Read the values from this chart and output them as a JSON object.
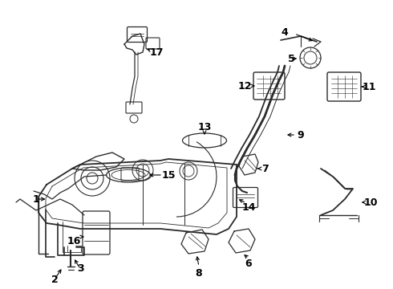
{
  "bg_color": "#ffffff",
  "line_color": "#2a2a2a",
  "text_color": "#000000",
  "fig_width": 4.9,
  "fig_height": 3.6,
  "dpi": 100
}
